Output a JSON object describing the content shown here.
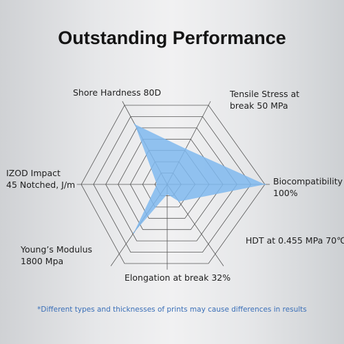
{
  "colors": {
    "fill": "#7fb8ee",
    "grid": "#555555",
    "note": "#3a6fb8"
  },
  "chart_data": {
    "type": "radar",
    "title": "Outstanding Performance",
    "axes": [
      {
        "line1": "Shore Hardness 80D",
        "line2": ""
      },
      {
        "line1": "Tensile Stress at",
        "line2": "break 50 MPa"
      },
      {
        "line1": "Biocompatibility",
        "line2": "100%"
      },
      {
        "line1": "HDT at 0.455 MPa 70℃",
        "line2": ""
      },
      {
        "line1": "Elongation at break 32%",
        "line2": ""
      },
      {
        "line1": "Young’s Modulus",
        "line2": "1800 Mpa"
      },
      {
        "line1": "IZOD Impact",
        "line2": "45 Notched, J/m"
      }
    ],
    "grid_levels": 7,
    "values": [
      0.76,
      0.45,
      1.0,
      0.22,
      0.12,
      0.62,
      0.12
    ],
    "note": "*Different types and thicknesses of prints may cause differences in results"
  }
}
